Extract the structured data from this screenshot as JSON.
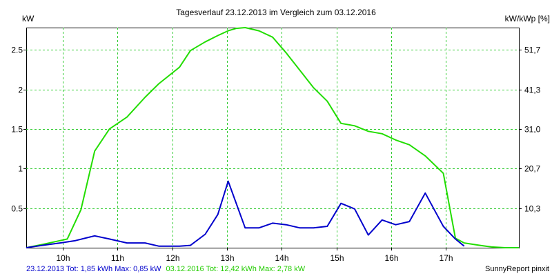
{
  "chart_data": {
    "type": "line",
    "title": "Tagesverlauf 23.12.2013 im Vergleich zum 03.12.2016",
    "y_left_label": "kW",
    "y_right_label": "kW/kWp [%]",
    "x_ticks": [
      "10h",
      "11h",
      "12h",
      "13h",
      "14h",
      "15h",
      "16h",
      "17h"
    ],
    "x_tick_hours": [
      10,
      11,
      12,
      13,
      14,
      15,
      16,
      17
    ],
    "xlim": [
      9.33,
      18.33
    ],
    "ylim": [
      0,
      2.78
    ],
    "y_left_ticks": [
      {
        "value": 0.5,
        "label": "0.5"
      },
      {
        "value": 1.0,
        "label": "1"
      },
      {
        "value": 1.5,
        "label": "1.5"
      },
      {
        "value": 2.0,
        "label": "2"
      },
      {
        "value": 2.5,
        "label": "2.5"
      }
    ],
    "y_right_ticks": [
      {
        "value": 0.5,
        "label": "10,3"
      },
      {
        "value": 1.0,
        "label": "20,7"
      },
      {
        "value": 1.5,
        "label": "31,0"
      },
      {
        "value": 2.0,
        "label": "41,3"
      },
      {
        "value": 2.5,
        "label": "51,7"
      }
    ],
    "grid": true,
    "series": [
      {
        "name": "23.12.2013",
        "color": "#0000cc",
        "x": [
          9.33,
          9.62,
          9.95,
          10.23,
          10.58,
          10.85,
          11.17,
          11.5,
          11.75,
          12.13,
          12.33,
          12.6,
          12.83,
          13.02,
          13.33,
          13.58,
          13.83,
          14.08,
          14.33,
          14.58,
          14.83,
          15.08,
          15.33,
          15.58,
          15.83,
          16.08,
          16.33,
          16.62,
          16.95,
          17.17,
          17.33
        ],
        "y": [
          0.0,
          0.03,
          0.06,
          0.09,
          0.15,
          0.11,
          0.06,
          0.06,
          0.02,
          0.02,
          0.03,
          0.17,
          0.42,
          0.84,
          0.25,
          0.25,
          0.31,
          0.29,
          0.25,
          0.25,
          0.27,
          0.56,
          0.49,
          0.16,
          0.35,
          0.29,
          0.33,
          0.69,
          0.27,
          0.11,
          0.02
        ]
      },
      {
        "name": "03.12.2016",
        "color": "#22dd00",
        "x": [
          9.33,
          9.62,
          9.95,
          10.08,
          10.33,
          10.58,
          10.85,
          11.17,
          11.5,
          11.75,
          12.13,
          12.33,
          12.6,
          12.83,
          13.02,
          13.17,
          13.33,
          13.58,
          13.83,
          14.08,
          14.33,
          14.58,
          14.83,
          15.08,
          15.33,
          15.58,
          15.83,
          16.08,
          16.33,
          16.62,
          16.95,
          17.17,
          17.33,
          17.62,
          17.83,
          18.08,
          18.33
        ],
        "y": [
          0.0,
          0.04,
          0.09,
          0.11,
          0.48,
          1.22,
          1.5,
          1.65,
          1.9,
          2.07,
          2.28,
          2.49,
          2.6,
          2.68,
          2.74,
          2.77,
          2.78,
          2.74,
          2.66,
          2.46,
          2.24,
          2.02,
          1.85,
          1.57,
          1.54,
          1.47,
          1.44,
          1.36,
          1.3,
          1.16,
          0.94,
          0.12,
          0.06,
          0.03,
          0.01,
          0.0,
          0.0
        ]
      }
    ],
    "legend_texts": [
      "23.12.2013 Tot: 1,85 kWh Max: 0,85 kW",
      "03.12.2016 Tot: 12,42 kWh Max: 2,78 kW"
    ],
    "credit": "SunnyReport pinxit"
  }
}
